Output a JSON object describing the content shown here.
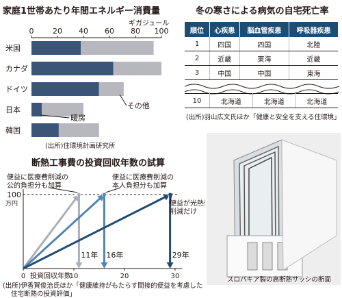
{
  "energy": {
    "title": "家庭1世帯あたり年間エネルギー消費量",
    "unit": "ギガジュール",
    "ticks": [
      "0",
      "20",
      "40",
      "60",
      "80",
      "100"
    ],
    "annotation_heating": "暖房",
    "annotation_other": "その他",
    "source": "(出所)住環境計画研究所",
    "colors": {
      "heating": "#3b5578",
      "other": "#b7b8bd"
    }
  },
  "deaths": {
    "title": "冬の寒さによる病気の自宅死亡率",
    "headers": [
      "順位",
      "心疾患",
      "脳血管疾患",
      "呼吸器疾患"
    ],
    "rows": [
      [
        "1",
        "四国",
        "四国",
        "北陸"
      ],
      [
        "2",
        "近畿",
        "東海",
        "近畿"
      ],
      [
        "3",
        "中国",
        "中国",
        "東海"
      ]
    ],
    "last_row": [
      "10",
      "北海道",
      "北海道",
      "北海道"
    ],
    "source": "(出所)羽山広文氏ほか「健康と安全を支える住環境」"
  },
  "payback": {
    "title": "断熱工事費の投資回収年数の試算",
    "y_label": "100",
    "y_unit": "万円",
    "x_ticks": [
      "0",
      "10",
      "20",
      "30"
    ],
    "x_caption": "投資回収年数",
    "labels": {
      "public": "便益に医療費削減の\n公的負担分も加算",
      "personal": "便益に医療費削減の\n本人負担分も加算",
      "energy": "便益が光熱費\n削減だけ"
    },
    "year_labels": [
      "11年",
      "16年",
      "29年"
    ],
    "source_line1": "(出所)伊香賀俊治氏ほか「健康維持がもたらす間接的便益を考慮した",
    "source_line2": "住宅断熱の投資評価」",
    "colors": {
      "light": "#a9aeb8",
      "mid": "#4f85b0",
      "dark": "#1f4d72"
    }
  },
  "photo": {
    "caption": "スロバキア製の高断熱サッシの断面"
  },
  "chart_data": [
    {
      "type": "bar",
      "title": "家庭1世帯あたり年間エネルギー消費量",
      "ylabel": "ギガジュール",
      "xlim": [
        0,
        100
      ],
      "categories": [
        "米国",
        "カナダ",
        "ドイツ",
        "日本",
        "韓国"
      ],
      "series": [
        {
          "name": "暖房",
          "values": [
            38,
            63,
            52,
            8,
            21
          ]
        },
        {
          "name": "その他",
          "values": [
            56,
            37,
            19,
            32,
            31
          ]
        }
      ]
    },
    {
      "type": "line",
      "title": "断熱工事費の投資回収年数の試算",
      "xlabel": "投資回収年数",
      "ylim": [
        0,
        100
      ],
      "xlim": [
        0,
        30
      ],
      "series": [
        {
          "name": "便益に医療費削減の公的負担分も加算",
          "x": [
            0,
            11
          ],
          "y": [
            0,
            100
          ]
        },
        {
          "name": "便益に医療費削減の本人負担分も加算",
          "x": [
            0,
            16
          ],
          "y": [
            0,
            100
          ]
        },
        {
          "name": "便益が光熱費削減だけ",
          "x": [
            0,
            29
          ],
          "y": [
            0,
            100
          ]
        }
      ]
    }
  ]
}
